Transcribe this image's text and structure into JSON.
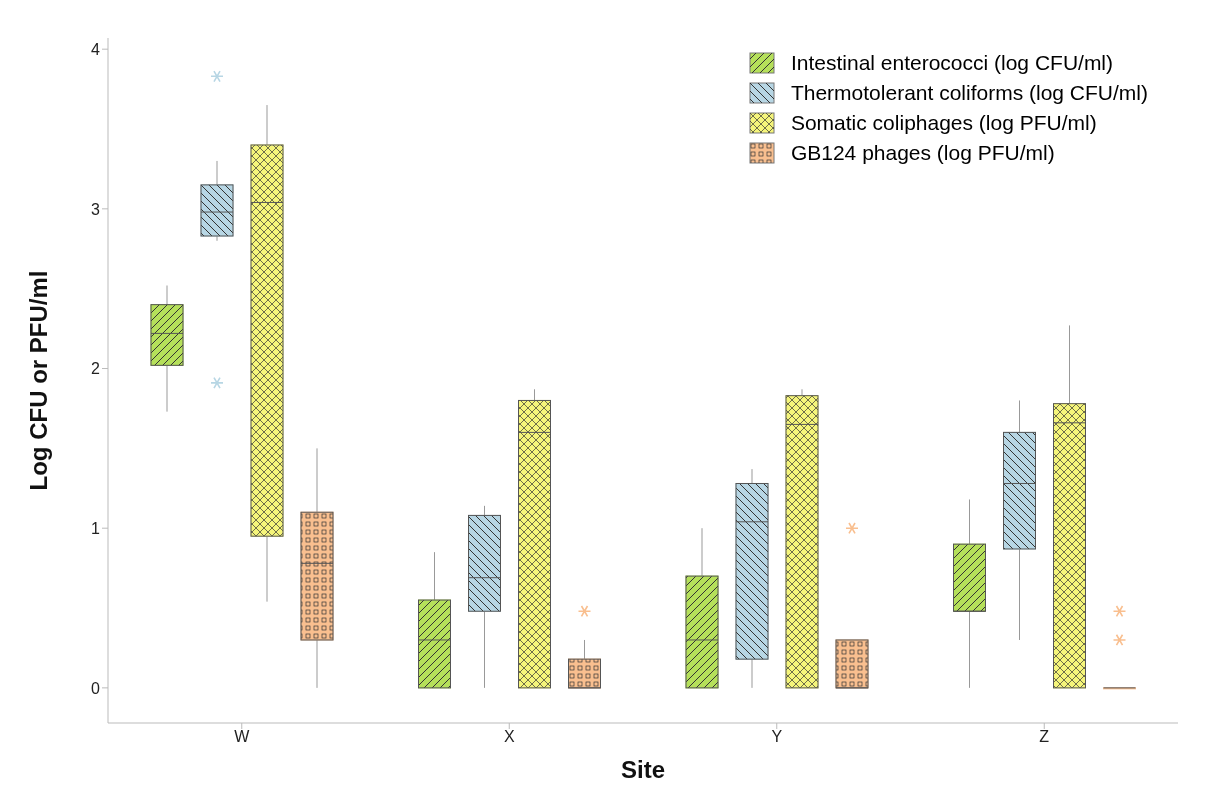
{
  "chart_data": {
    "type": "box",
    "xlabel": "Site",
    "ylabel": "Log CFU or PFU/ml",
    "categories": [
      "W",
      "X",
      "Y",
      "Z"
    ],
    "ylim": [
      -0.22,
      4.07
    ],
    "yticks": [
      0,
      1,
      2,
      3,
      4
    ],
    "grid": false,
    "legend": "top right",
    "marker": "star",
    "series": [
      {
        "name": "Intestinal enterococci (log CFU/ml)",
        "color": "#b5e05a",
        "boxes": [
          {
            "low": 1.73,
            "q1": 2.02,
            "median": 2.22,
            "q3": 2.4,
            "high": 2.52
          },
          {
            "low": 0,
            "q1": 0,
            "median": 0.3,
            "q3": 0.55,
            "high": 0.85
          },
          {
            "low": 0,
            "q1": 0,
            "median": 0.3,
            "q3": 0.7,
            "high": 1.0
          },
          {
            "low": 0,
            "q1": 0.48,
            "median": 0.48,
            "q3": 0.9,
            "high": 1.18
          }
        ]
      },
      {
        "name": "Thermotolerant coliforms (log CFU/ml)",
        "color": "#b7d6e4",
        "boxes": [
          {
            "low": 2.8,
            "q1": 2.83,
            "median": 2.98,
            "q3": 3.15,
            "high": 3.3,
            "outliers": [
              3.83,
              1.91
            ]
          },
          {
            "low": 0,
            "q1": 0.48,
            "median": 0.69,
            "q3": 1.08,
            "high": 1.14
          },
          {
            "low": 0,
            "q1": 0.18,
            "median": 1.04,
            "q3": 1.28,
            "high": 1.37
          },
          {
            "low": 0.3,
            "q1": 0.87,
            "median": 1.28,
            "q3": 1.6,
            "high": 1.8
          }
        ]
      },
      {
        "name": "Somatic coliphages (log PFU/ml)",
        "color": "#f5f57a",
        "boxes": [
          {
            "low": 0.54,
            "q1": 0.95,
            "median": 3.04,
            "q3": 3.4,
            "high": 3.65
          },
          {
            "low": 0,
            "q1": 0,
            "median": 1.6,
            "q3": 1.8,
            "high": 1.87
          },
          {
            "low": 0,
            "q1": 0,
            "median": 1.65,
            "q3": 1.83,
            "high": 1.87
          },
          {
            "low": 0,
            "q1": 0,
            "median": 1.66,
            "q3": 1.78,
            "high": 2.27
          }
        ]
      },
      {
        "name": "GB124 phages (log PFU/ml)",
        "color": "#f9bf8f",
        "boxes": [
          {
            "low": 0,
            "q1": 0.3,
            "median": 0.78,
            "q3": 1.1,
            "high": 1.5
          },
          {
            "low": 0,
            "q1": 0,
            "median": 0,
            "q3": 0.18,
            "high": 0.3,
            "outliers": [
              0.48
            ]
          },
          {
            "low": 0,
            "q1": 0,
            "median": 0,
            "q3": 0.3,
            "high": 0.3,
            "outliers": [
              1.0
            ]
          },
          {
            "low": 0,
            "q1": 0,
            "median": 0,
            "q3": 0,
            "high": 0,
            "outliers": [
              0.3,
              0.48
            ]
          }
        ]
      }
    ]
  }
}
